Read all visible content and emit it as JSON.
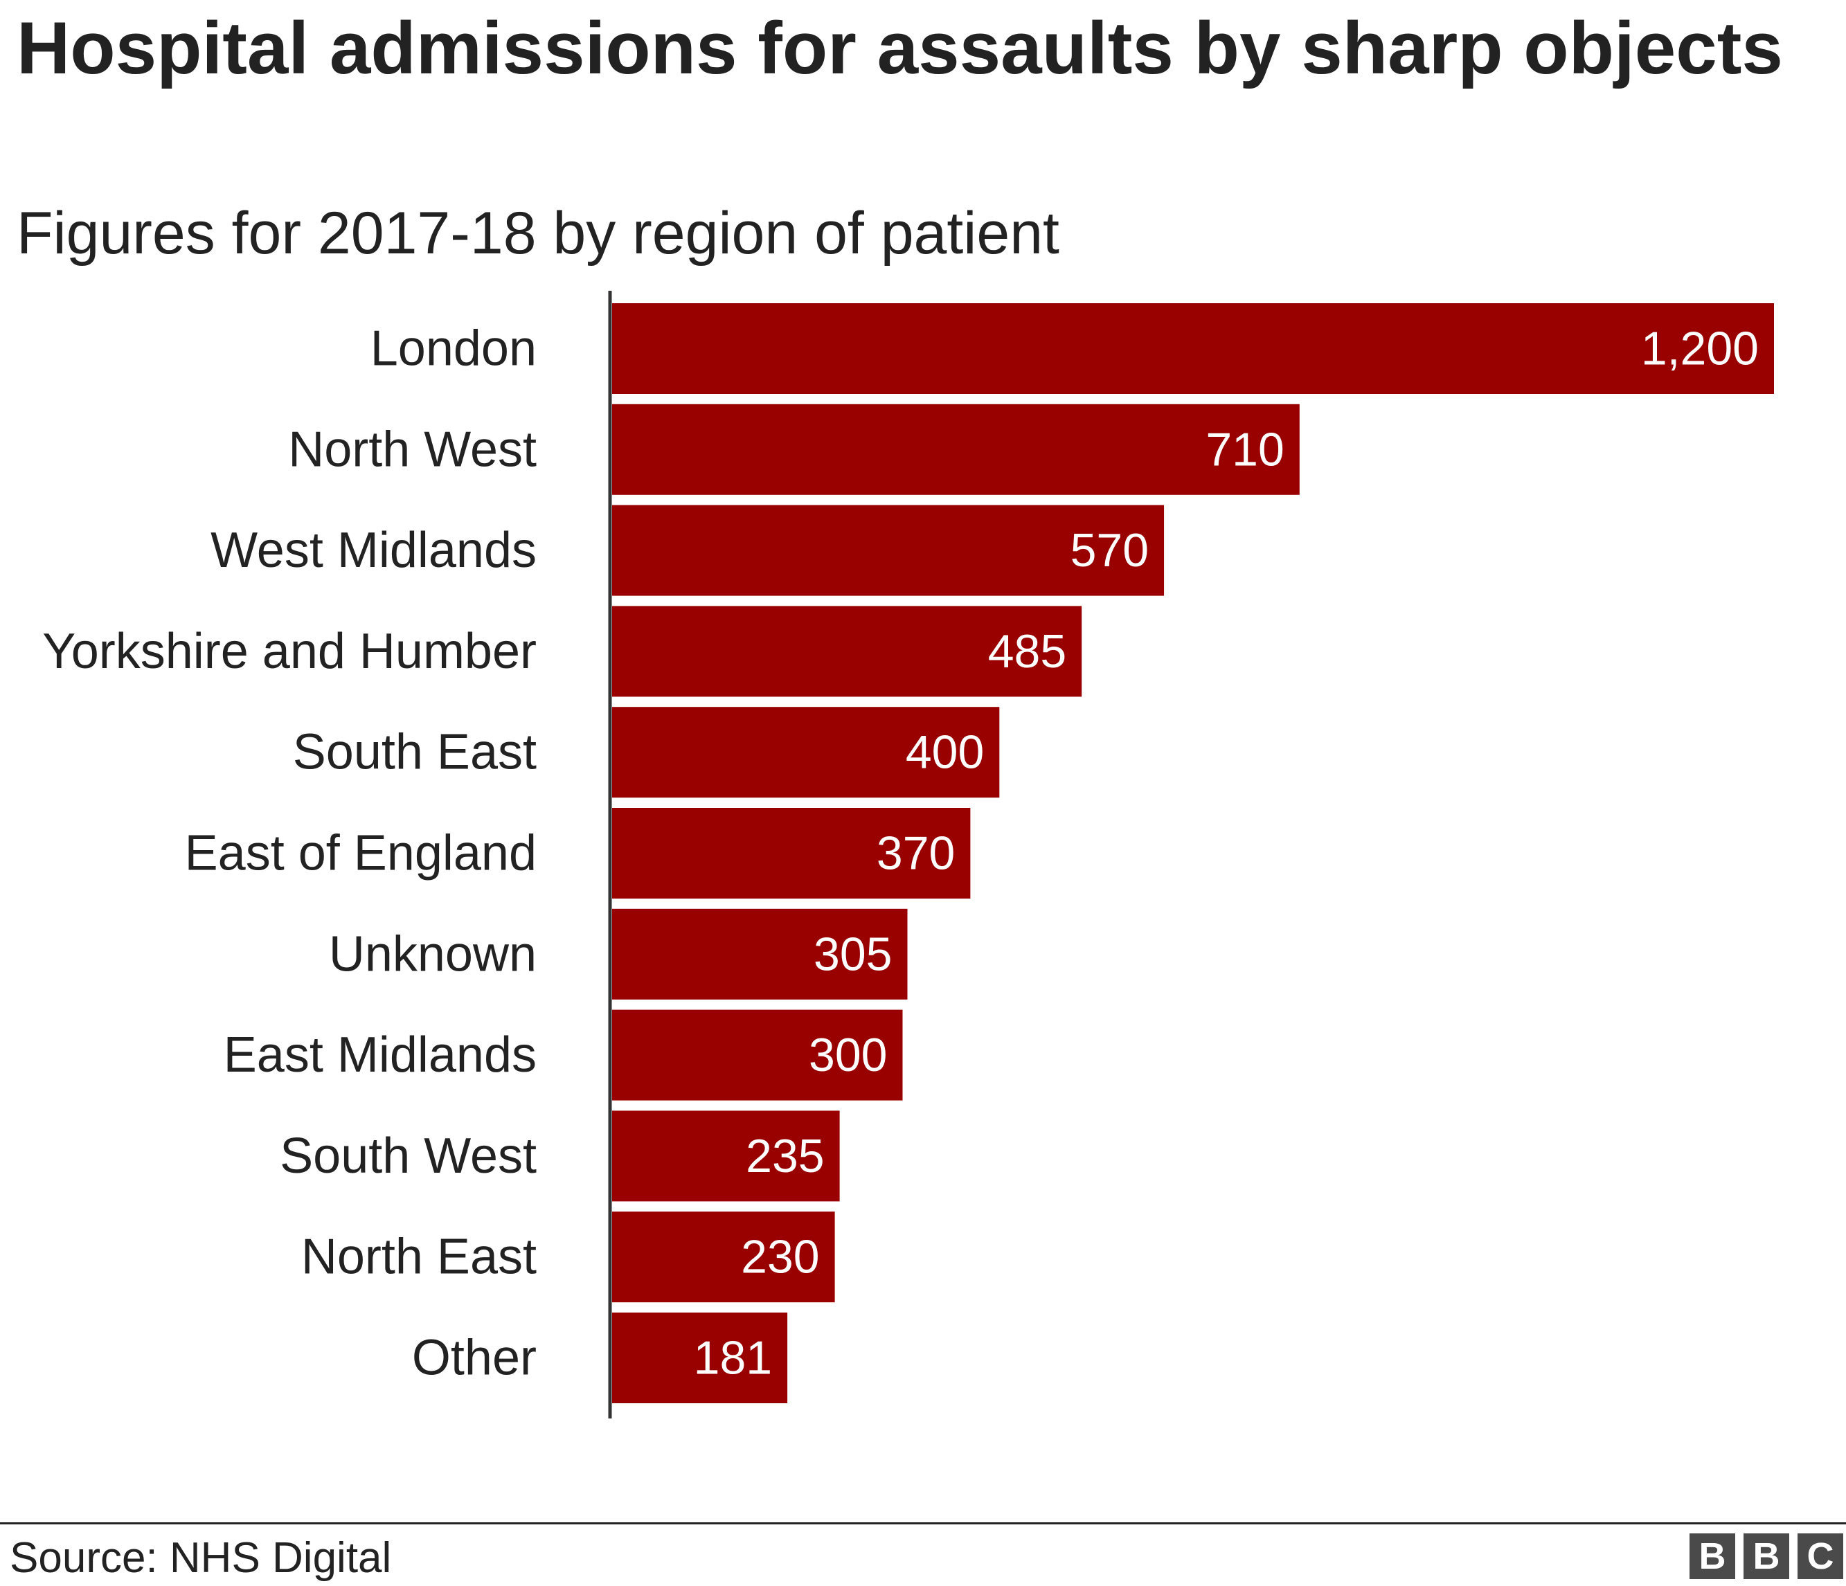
{
  "header": {
    "title": "Hospital admissions for assaults by sharp objects",
    "subtitle": "Figures for 2017-18 by region of patient"
  },
  "footer": {
    "source": "Source: NHS Digital",
    "logo_letters": [
      "B",
      "B",
      "C"
    ]
  },
  "colors": {
    "bar": "#990000",
    "bar_label": "#ffffff",
    "category_label": "#222222",
    "axis": "#333333"
  },
  "chart_data": {
    "type": "bar",
    "orientation": "horizontal",
    "title": "Hospital admissions for assaults by sharp objects",
    "subtitle": "Figures for 2017-18 by region of patient",
    "categories": [
      "London",
      "North West",
      "West Midlands",
      "Yorkshire and Humber",
      "South East",
      "East of England",
      "Unknown",
      "East Midlands",
      "South West",
      "North East",
      "Other"
    ],
    "values": [
      1200,
      710,
      570,
      485,
      400,
      370,
      305,
      300,
      235,
      230,
      181
    ],
    "value_labels": [
      "1,200",
      "710",
      "570",
      "485",
      "400",
      "370",
      "305",
      "300",
      "235",
      "230",
      "181"
    ],
    "xlim": [
      0,
      1200
    ],
    "grid": false,
    "legend": "none",
    "xlabel": "",
    "ylabel": ""
  }
}
